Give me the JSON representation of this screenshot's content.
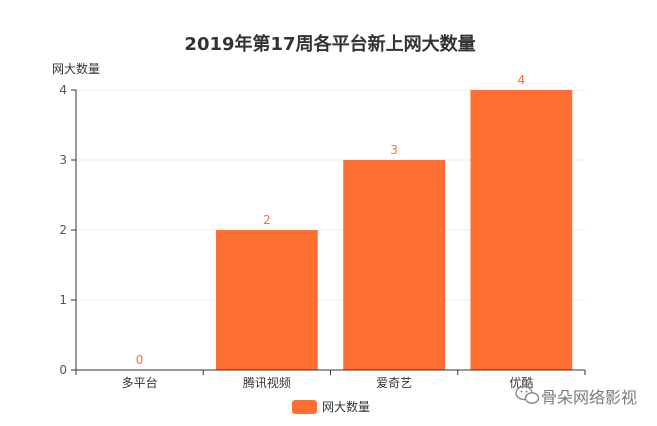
{
  "chart_data": {
    "type": "bar",
    "title": "2019年第17周各平台新上网大数量",
    "ylabel": "网大数量",
    "xlabel": "",
    "categories": [
      "多平台",
      "腾讯视频",
      "爱奇艺",
      "优酷"
    ],
    "series": [
      {
        "name": "网大数量",
        "values": [
          0,
          2,
          3,
          4
        ]
      }
    ],
    "ylim": [
      0,
      4
    ],
    "yticks": [
      0,
      1,
      2,
      3,
      4
    ],
    "grid": true,
    "legend": "bottom-center",
    "data_labels": true
  },
  "colors": {
    "bar": "#ff6f31",
    "label": "#ff6f31",
    "axis": "#333333",
    "grid": "#eeeeee"
  },
  "watermark": {
    "text": "骨朵网络影视",
    "icon": "wechat-icon"
  }
}
